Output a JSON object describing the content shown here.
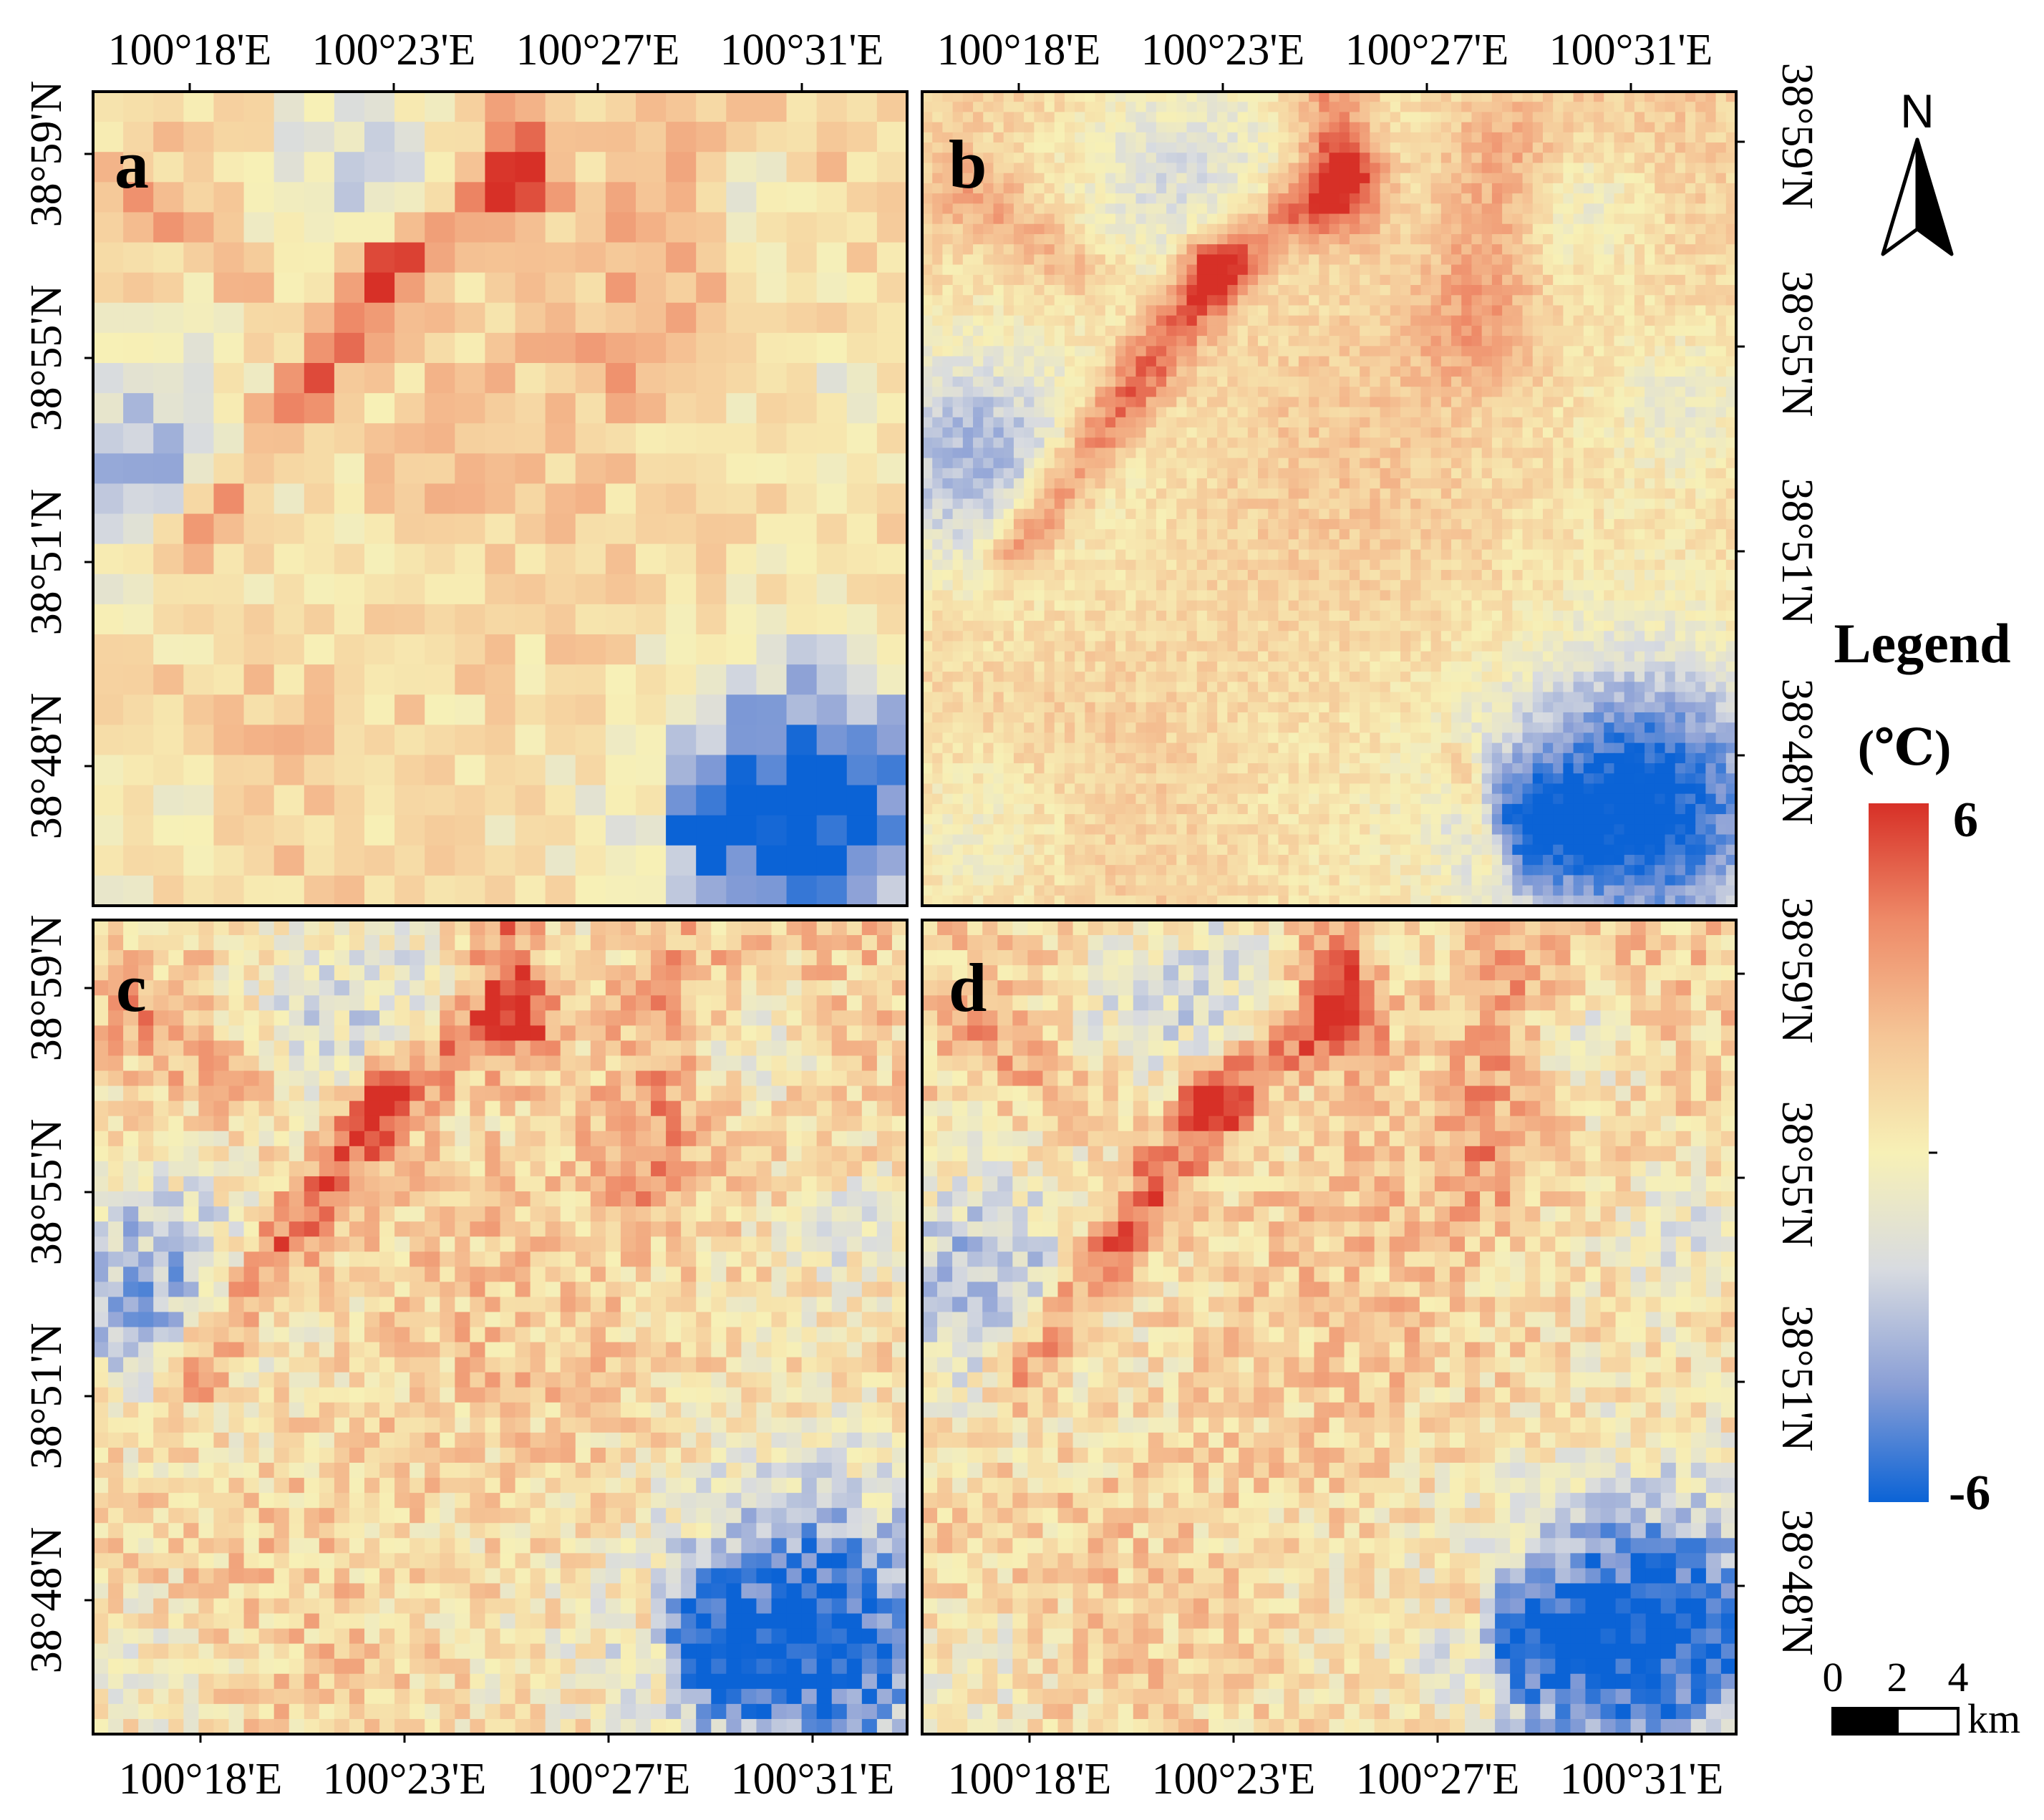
{
  "figure": {
    "lon_ticks": [
      "100°18'E",
      "100°23'E",
      "100°27'E",
      "100°31'E"
    ],
    "lat_ticks": [
      "38°59'N",
      "38°55'N",
      "38°51'N",
      "38°48'N"
    ],
    "panels": [
      {
        "letter": "a",
        "grid": 27
      },
      {
        "letter": "b",
        "grid": 80
      },
      {
        "letter": "c",
        "grid": 54
      },
      {
        "letter": "d",
        "grid": 54
      }
    ]
  },
  "legend": {
    "title": "Legend",
    "unit": "(℃)",
    "max_label": "6",
    "min_label": "-6",
    "max_value": 6,
    "min_value": -6,
    "colors": [
      "#0b63d6",
      "#8a9fd6",
      "#d8dbe0",
      "#f7f0b6",
      "#f5c596",
      "#ee8a68",
      "#d73027"
    ]
  },
  "north_arrow": {
    "label": "N"
  },
  "scale_bar": {
    "ticks": [
      "0",
      "2",
      "4"
    ],
    "unit": "km"
  }
}
